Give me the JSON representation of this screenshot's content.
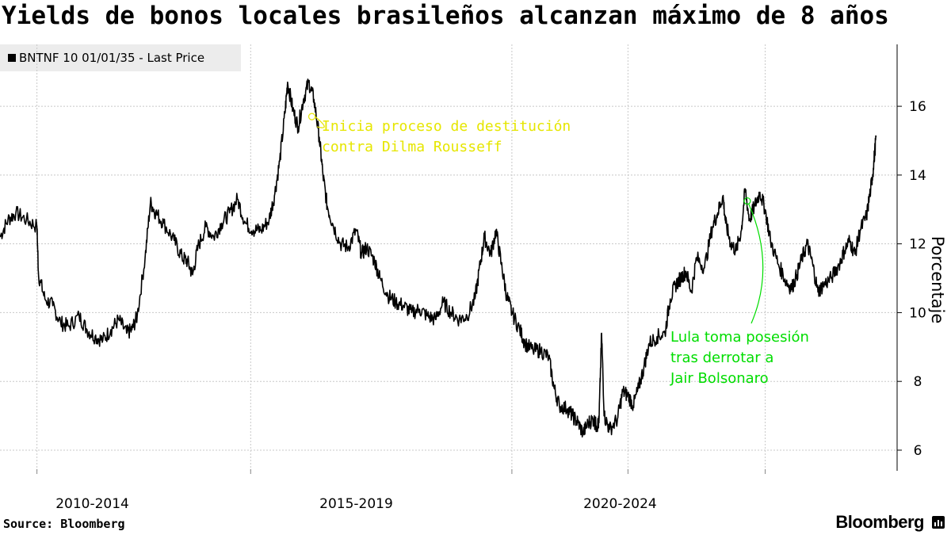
{
  "title": "Yields de bonos locales brasileños alcanzan máximo de 8 años",
  "legend": {
    "label": "BNTNF 10 01/01/35 - Last Price"
  },
  "footer": {
    "source": "Source: Bloomberg",
    "brand": "Bloomberg",
    "brand_icon": "bloomberg-terminal-icon"
  },
  "colors": {
    "line": "#000000",
    "grid": "#c8c8c8",
    "annotation_1": "#e6e600",
    "annotation_2": "#00dd00"
  },
  "chart_data": {
    "type": "line",
    "title": "Yields de bonos locales brasileños alcanzan máximo de 8 años",
    "ylabel": "Porcentaje",
    "ylim": [
      5.4,
      17.8
    ],
    "yticks": [
      6,
      8,
      10,
      12,
      14,
      16
    ],
    "xlim": [
      2009.0,
      2026.0
    ],
    "x_period_labels": [
      {
        "label": "2010-2014",
        "center": 2010.75
      },
      {
        "label": "2015-2019",
        "center": 2015.75
      },
      {
        "label": "2020-2024",
        "center": 2020.75
      }
    ],
    "x_gridlines": [
      2009.7,
      2013.75,
      2018.7,
      2020.9,
      2023.5
    ],
    "series": [
      {
        "name": "BNTNF 10 01/01/35 - Last Price",
        "points": [
          [
            2009.0,
            12.2
          ],
          [
            2009.15,
            12.7
          ],
          [
            2009.3,
            12.9
          ],
          [
            2009.5,
            12.7
          ],
          [
            2009.7,
            12.5
          ],
          [
            2009.73,
            11.1
          ],
          [
            2009.85,
            10.4
          ],
          [
            2010.0,
            10.2
          ],
          [
            2010.15,
            9.7
          ],
          [
            2010.3,
            9.6
          ],
          [
            2010.5,
            9.9
          ],
          [
            2010.65,
            9.5
          ],
          [
            2010.8,
            9.3
          ],
          [
            2010.95,
            9.2
          ],
          [
            2011.1,
            9.5
          ],
          [
            2011.25,
            9.8
          ],
          [
            2011.4,
            9.4
          ],
          [
            2011.5,
            9.5
          ],
          [
            2011.6,
            9.9
          ],
          [
            2011.75,
            11.6
          ],
          [
            2011.85,
            13.2
          ],
          [
            2011.95,
            12.9
          ],
          [
            2012.1,
            12.6
          ],
          [
            2012.3,
            12.1
          ],
          [
            2012.45,
            11.6
          ],
          [
            2012.55,
            11.5
          ],
          [
            2012.65,
            11.1
          ],
          [
            2012.75,
            11.9
          ],
          [
            2012.9,
            12.5
          ],
          [
            2013.05,
            12.2
          ],
          [
            2013.2,
            12.6
          ],
          [
            2013.35,
            12.9
          ],
          [
            2013.5,
            13.3
          ],
          [
            2013.65,
            12.6
          ],
          [
            2013.8,
            12.4
          ],
          [
            2013.95,
            12.4
          ],
          [
            2014.1,
            12.7
          ],
          [
            2014.2,
            13.4
          ],
          [
            2014.3,
            14.4
          ],
          [
            2014.4,
            15.8
          ],
          [
            2014.45,
            16.7
          ],
          [
            2014.55,
            15.9
          ],
          [
            2014.65,
            15.4
          ],
          [
            2014.75,
            16.2
          ],
          [
            2014.85,
            16.7
          ],
          [
            2014.95,
            16.2
          ],
          [
            2015.05,
            15.1
          ],
          [
            2015.12,
            14.0
          ],
          [
            2015.2,
            13.1
          ],
          [
            2015.3,
            12.6
          ],
          [
            2015.45,
            12.0
          ],
          [
            2015.6,
            11.9
          ],
          [
            2015.75,
            12.4
          ],
          [
            2015.85,
            11.7
          ],
          [
            2015.95,
            11.9
          ],
          [
            2016.1,
            11.5
          ],
          [
            2016.2,
            11.0
          ],
          [
            2016.35,
            10.5
          ],
          [
            2016.5,
            10.3
          ],
          [
            2016.65,
            10.2
          ],
          [
            2016.8,
            10.0
          ],
          [
            2016.95,
            10.1
          ],
          [
            2017.1,
            9.9
          ],
          [
            2017.25,
            9.8
          ],
          [
            2017.4,
            10.3
          ],
          [
            2017.55,
            10.0
          ],
          [
            2017.7,
            9.8
          ],
          [
            2017.85,
            9.9
          ],
          [
            2018.0,
            10.4
          ],
          [
            2018.1,
            11.4
          ],
          [
            2018.18,
            12.2
          ],
          [
            2018.3,
            11.7
          ],
          [
            2018.4,
            12.4
          ],
          [
            2018.5,
            11.4
          ],
          [
            2018.6,
            10.5
          ],
          [
            2018.7,
            10.0
          ],
          [
            2018.85,
            9.5
          ],
          [
            2018.95,
            9.1
          ],
          [
            2019.1,
            8.9
          ],
          [
            2019.25,
            8.9
          ],
          [
            2019.4,
            8.7
          ],
          [
            2019.5,
            7.8
          ],
          [
            2019.6,
            7.3
          ],
          [
            2019.75,
            7.2
          ],
          [
            2019.85,
            7.0
          ],
          [
            2019.95,
            6.8
          ],
          [
            2020.05,
            6.5
          ],
          [
            2020.15,
            6.8
          ],
          [
            2020.25,
            6.9
          ],
          [
            2020.3,
            6.7
          ],
          [
            2020.35,
            6.8
          ],
          [
            2020.4,
            9.4
          ],
          [
            2020.45,
            7.0
          ],
          [
            2020.55,
            6.6
          ],
          [
            2020.7,
            6.9
          ],
          [
            2020.8,
            7.7
          ],
          [
            2020.9,
            7.6
          ],
          [
            2021.0,
            7.3
          ],
          [
            2021.1,
            7.8
          ],
          [
            2021.2,
            8.4
          ],
          [
            2021.3,
            9.1
          ],
          [
            2021.45,
            9.3
          ],
          [
            2021.6,
            9.4
          ],
          [
            2021.7,
            10.4
          ],
          [
            2021.8,
            10.8
          ],
          [
            2021.9,
            11.0
          ],
          [
            2022.0,
            11.2
          ],
          [
            2022.1,
            10.6
          ],
          [
            2022.2,
            11.6
          ],
          [
            2022.35,
            11.3
          ],
          [
            2022.5,
            12.5
          ],
          [
            2022.6,
            12.9
          ],
          [
            2022.7,
            13.4
          ],
          [
            2022.75,
            12.6
          ],
          [
            2022.85,
            12.0
          ],
          [
            2022.95,
            11.8
          ],
          [
            2023.05,
            12.4
          ],
          [
            2023.12,
            13.6
          ],
          [
            2023.2,
            12.7
          ],
          [
            2023.3,
            13.1
          ],
          [
            2023.4,
            13.5
          ],
          [
            2023.5,
            13.0
          ],
          [
            2023.6,
            12.1
          ],
          [
            2023.75,
            11.4
          ],
          [
            2023.9,
            10.9
          ],
          [
            2024.0,
            10.7
          ],
          [
            2024.1,
            11.1
          ],
          [
            2024.2,
            11.6
          ],
          [
            2024.3,
            12.0
          ],
          [
            2024.4,
            11.4
          ],
          [
            2024.5,
            10.6
          ],
          [
            2024.6,
            10.8
          ],
          [
            2024.75,
            11.0
          ],
          [
            2024.9,
            11.4
          ],
          [
            2025.0,
            11.8
          ],
          [
            2025.1,
            12.1
          ],
          [
            2025.2,
            11.7
          ],
          [
            2025.3,
            12.4
          ],
          [
            2025.42,
            12.8
          ],
          [
            2025.5,
            13.6
          ],
          [
            2025.55,
            14.2
          ],
          [
            2025.6,
            15.1
          ]
        ]
      }
    ],
    "annotations": [
      {
        "text_lines": [
          "Inicia proceso de destitución",
          "contra Dilma Rousseff"
        ],
        "x": 2014.7,
        "y": 15.7,
        "color": "#e6e600"
      },
      {
        "text_lines": [
          "Lula toma posesión",
          "tras derrotar a",
          "Jair Bolsonaro"
        ],
        "x": 2023.1,
        "y": 13.2,
        "color": "#00dd00"
      }
    ]
  }
}
